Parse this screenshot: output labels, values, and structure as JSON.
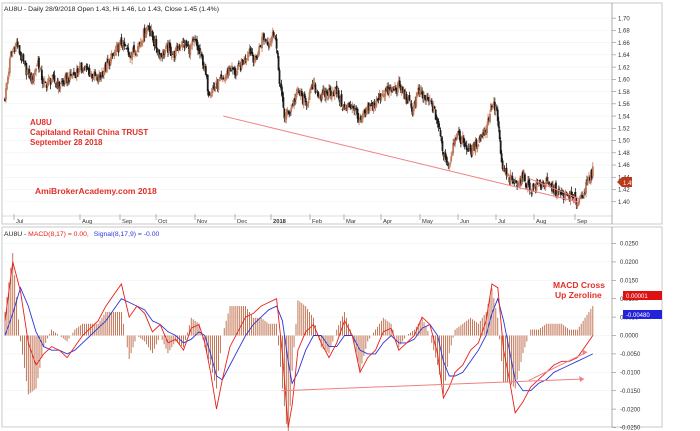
{
  "header": {
    "price_title": "AU8U - Daily 28/9/2018 Open 1.43, Hi 1.46, Lo 1.43, Close 1.45 (1.4%)",
    "macd_prefix": "AU8U - ",
    "macd_label": "MACD(8,17) = 0.00,",
    "signal_label": "Signal(8,17,9) = -0.00"
  },
  "annotations": {
    "symbol": "AU8U",
    "name": "Capitaland Retail China TRUST",
    "date": "September 28 2018",
    "watermark": "AmiBrokerAcademy.com  2018",
    "macd_note_line1": "MACD Cross",
    "macd_note_line2": "Up Zeroline"
  },
  "colors": {
    "bar_up": "#c0785a",
    "bar_down": "#1a1a1a",
    "macd_line": "#e8201a",
    "signal_line": "#2b35d8",
    "histogram": "#b5562f",
    "annotation_text": "#e0302a",
    "trendline": "#f08080",
    "last_price_badge": "#b83a1a",
    "macd_badge": "#dd1111",
    "signal_badge": "#2222dd"
  },
  "chart_data": [
    {
      "type": "ohlc",
      "panel": "price",
      "ylim": [
        1.38,
        1.71
      ],
      "y_ticks": [
        1.4,
        1.42,
        1.44,
        1.46,
        1.48,
        1.5,
        1.52,
        1.54,
        1.56,
        1.58,
        1.6,
        1.62,
        1.64,
        1.66,
        1.68,
        1.7
      ],
      "x_ticks": [
        "Jul",
        "Aug",
        "Sep",
        "Oct",
        "Nov",
        "Dec",
        "2018",
        "Feb",
        "Mar",
        "Apr",
        "May",
        "Jun",
        "Jul",
        "Aug",
        "Sep"
      ],
      "last_price_label": "1.45",
      "close_path": [
        [
          0,
          1.57
        ],
        [
          6,
          1.64
        ],
        [
          12,
          1.66
        ],
        [
          20,
          1.62
        ],
        [
          28,
          1.6
        ],
        [
          34,
          1.63
        ],
        [
          40,
          1.59
        ],
        [
          48,
          1.6
        ],
        [
          56,
          1.59
        ],
        [
          64,
          1.6
        ],
        [
          72,
          1.61
        ],
        [
          80,
          1.62
        ],
        [
          88,
          1.61
        ],
        [
          96,
          1.6
        ],
        [
          104,
          1.62
        ],
        [
          112,
          1.64
        ],
        [
          120,
          1.66
        ],
        [
          128,
          1.64
        ],
        [
          136,
          1.65
        ],
        [
          142,
          1.67
        ],
        [
          148,
          1.69
        ],
        [
          154,
          1.66
        ],
        [
          160,
          1.64
        ],
        [
          168,
          1.65
        ],
        [
          174,
          1.64
        ],
        [
          182,
          1.66
        ],
        [
          190,
          1.65
        ],
        [
          196,
          1.66
        ],
        [
          204,
          1.63
        ],
        [
          210,
          1.58
        ],
        [
          218,
          1.59
        ],
        [
          226,
          1.6
        ],
        [
          232,
          1.62
        ],
        [
          238,
          1.61
        ],
        [
          246,
          1.63
        ],
        [
          252,
          1.65
        ],
        [
          258,
          1.63
        ],
        [
          266,
          1.67
        ],
        [
          272,
          1.66
        ],
        [
          278,
          1.68
        ],
        [
          283,
          1.6
        ],
        [
          288,
          1.54
        ],
        [
          294,
          1.55
        ],
        [
          302,
          1.58
        ],
        [
          310,
          1.56
        ],
        [
          318,
          1.59
        ],
        [
          326,
          1.57
        ],
        [
          334,
          1.58
        ],
        [
          342,
          1.58
        ],
        [
          350,
          1.55
        ],
        [
          358,
          1.56
        ],
        [
          366,
          1.53
        ],
        [
          374,
          1.55
        ],
        [
          382,
          1.56
        ],
        [
          390,
          1.58
        ],
        [
          398,
          1.58
        ],
        [
          406,
          1.59
        ],
        [
          414,
          1.57
        ],
        [
          420,
          1.55
        ],
        [
          426,
          1.58
        ],
        [
          432,
          1.57
        ],
        [
          440,
          1.56
        ],
        [
          446,
          1.53
        ],
        [
          452,
          1.48
        ],
        [
          458,
          1.46
        ],
        [
          464,
          1.51
        ],
        [
          472,
          1.5
        ],
        [
          480,
          1.48
        ],
        [
          488,
          1.5
        ],
        [
          496,
          1.52
        ],
        [
          502,
          1.56
        ],
        [
          507,
          1.55
        ],
        [
          512,
          1.46
        ],
        [
          518,
          1.44
        ],
        [
          526,
          1.43
        ],
        [
          534,
          1.44
        ],
        [
          542,
          1.42
        ],
        [
          550,
          1.43
        ],
        [
          558,
          1.43
        ],
        [
          566,
          1.42
        ],
        [
          574,
          1.41
        ],
        [
          582,
          1.41
        ],
        [
          590,
          1.4
        ],
        [
          598,
          1.42
        ],
        [
          606,
          1.45
        ]
      ],
      "trend_lines": [
        {
          "from": [
            225,
            1.54
          ],
          "to": [
            590,
            1.4
          ]
        },
        {
          "from": [
            542,
            1.437
          ],
          "to": [
            592,
            1.405
          ]
        }
      ]
    },
    {
      "type": "line",
      "panel": "macd",
      "title": "MACD(8,17) = 0.00, Signal(8,17,9) = -0.00",
      "ylim": [
        -0.0235,
        0.0265
      ],
      "y_ticks": [
        0.025,
        0.02,
        0.015,
        0.01,
        0.005,
        0.0,
        -0.005,
        -0.01,
        -0.015,
        -0.02,
        -0.025
      ],
      "badges": {
        "macd": "0.00001",
        "signal": "-0.00480"
      },
      "series": [
        {
          "name": "MACD(8,17)",
          "x": [
            0,
            8,
            16,
            24,
            32,
            40,
            48,
            56,
            64,
            72,
            80,
            88,
            96,
            104,
            112,
            120,
            128,
            136,
            144,
            152,
            160,
            168,
            176,
            184,
            192,
            200,
            206,
            212,
            218,
            224,
            232,
            240,
            248,
            256,
            264,
            272,
            280,
            286,
            292,
            296,
            302,
            310,
            318,
            326,
            334,
            342,
            350,
            358,
            366,
            374,
            382,
            390,
            398,
            406,
            414,
            422,
            430,
            438,
            446,
            452,
            458,
            464,
            472,
            480,
            488,
            496,
            502,
            508,
            514,
            520,
            526,
            534,
            542,
            550,
            558,
            566,
            574,
            582,
            590,
            598,
            606
          ],
          "values": [
            0.004,
            0.02,
            0.012,
            -0.002,
            -0.008,
            -0.005,
            -0.003,
            -0.004,
            -0.006,
            -0.003,
            0.0,
            0.002,
            0.004,
            0.008,
            0.011,
            0.014,
            0.005,
            0.008,
            0.006,
            0.001,
            0.003,
            -0.002,
            -0.001,
            -0.004,
            0.002,
            0.003,
            -0.002,
            -0.01,
            -0.02,
            -0.012,
            -0.003,
            0.001,
            0.005,
            0.006,
            0.008,
            0.009,
            0.01,
            -0.005,
            -0.025,
            -0.019,
            -0.004,
            0.001,
            0.003,
            -0.002,
            -0.006,
            -0.002,
            0.004,
            0.0,
            -0.01,
            -0.006,
            -0.004,
            0.001,
            0.002,
            -0.004,
            -0.002,
            0.0,
            0.005,
            0.003,
            -0.005,
            -0.017,
            -0.014,
            -0.01,
            -0.008,
            -0.004,
            -0.002,
            0.004,
            0.014,
            0.013,
            -0.004,
            -0.012,
            -0.021,
            -0.018,
            -0.014,
            -0.012,
            -0.01,
            -0.008,
            -0.007,
            -0.007,
            -0.006,
            -0.003,
            0.0
          ]
        },
        {
          "name": "Signal(8,17,9)",
          "x": [
            0,
            8,
            16,
            24,
            32,
            40,
            48,
            56,
            64,
            72,
            80,
            88,
            96,
            104,
            112,
            120,
            128,
            136,
            144,
            152,
            160,
            168,
            176,
            184,
            192,
            200,
            206,
            212,
            218,
            224,
            232,
            240,
            248,
            256,
            264,
            272,
            280,
            286,
            292,
            296,
            302,
            310,
            318,
            326,
            334,
            342,
            350,
            358,
            366,
            374,
            382,
            390,
            398,
            406,
            414,
            422,
            430,
            438,
            446,
            452,
            458,
            464,
            472,
            480,
            488,
            496,
            502,
            508,
            514,
            520,
            526,
            534,
            542,
            550,
            558,
            566,
            574,
            582,
            590,
            598,
            606
          ],
          "values": [
            0.0,
            0.006,
            0.013,
            0.008,
            0.001,
            -0.003,
            -0.004,
            -0.004,
            -0.005,
            -0.004,
            -0.002,
            0.0,
            0.002,
            0.004,
            0.007,
            0.01,
            0.009,
            0.008,
            0.007,
            0.004,
            0.003,
            0.001,
            0.0,
            -0.002,
            -0.001,
            0.001,
            0.0,
            -0.005,
            -0.011,
            -0.012,
            -0.008,
            -0.004,
            0.0,
            0.003,
            0.005,
            0.007,
            0.008,
            0.004,
            -0.007,
            -0.013,
            -0.01,
            -0.004,
            0.0,
            0.0,
            -0.003,
            -0.003,
            0.0,
            0.0,
            -0.004,
            -0.005,
            -0.005,
            -0.002,
            0.0,
            -0.002,
            -0.002,
            -0.001,
            0.002,
            0.003,
            0.0,
            -0.007,
            -0.011,
            -0.011,
            -0.01,
            -0.007,
            -0.004,
            0.0,
            0.006,
            0.01,
            0.004,
            -0.004,
            -0.012,
            -0.015,
            -0.015,
            -0.013,
            -0.012,
            -0.01,
            -0.009,
            -0.008,
            -0.007,
            -0.006,
            -0.005
          ]
        }
      ],
      "trend_lines": [
        {
          "from": [
            285,
            -0.015
          ],
          "to": [
            597,
            -0.0118
          ]
        },
        {
          "from": [
            540,
            -0.0122
          ],
          "to": [
            600,
            -0.0045
          ]
        }
      ]
    }
  ]
}
